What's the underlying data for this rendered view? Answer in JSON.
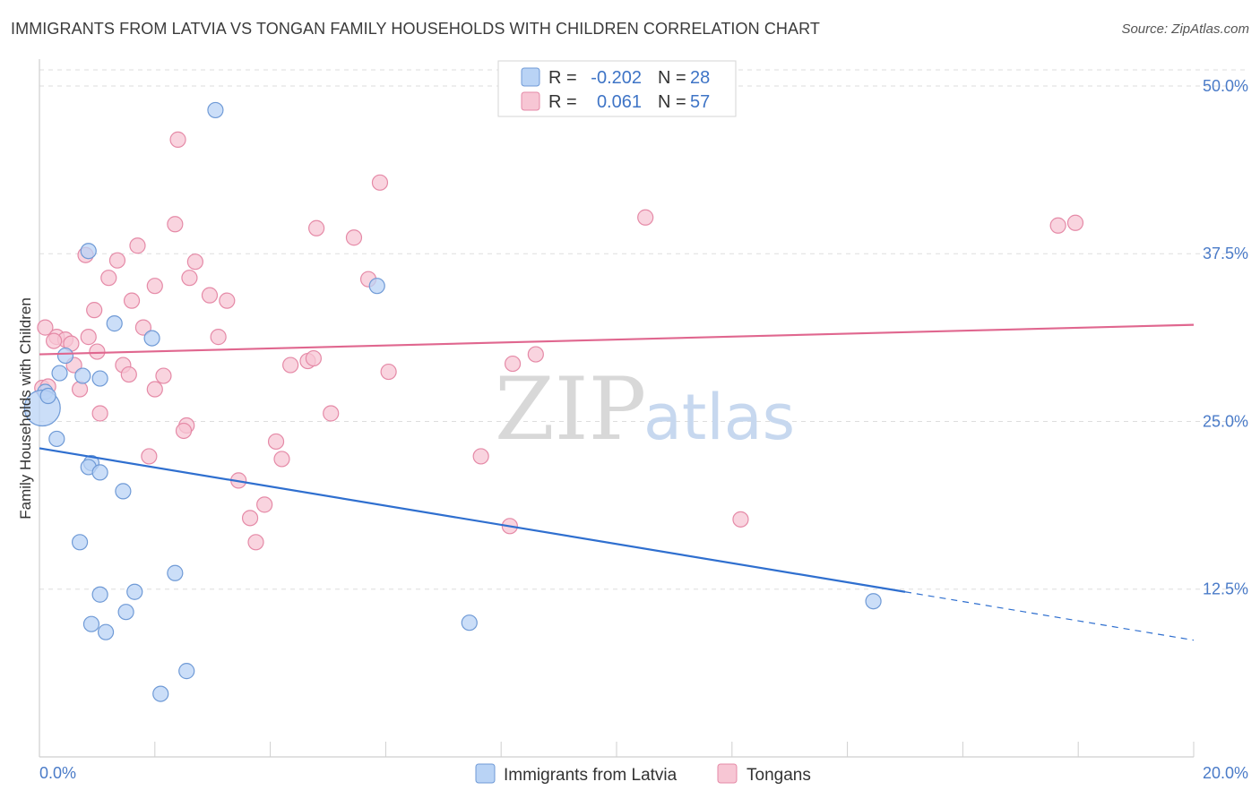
{
  "title": "IMMIGRANTS FROM LATVIA VS TONGAN FAMILY HOUSEHOLDS WITH CHILDREN CORRELATION CHART",
  "source": "Source: ZipAtlas.com",
  "colors": {
    "latvia_fill": "#b9d3f5",
    "latvia_stroke": "#6f9ad6",
    "latvia_line": "#2f6fcf",
    "tongan_fill": "#f7c6d4",
    "tongan_stroke": "#e58aa7",
    "tongan_line": "#e0678f",
    "tick_text": "#4a7bc8",
    "grid": "#dddddd"
  },
  "legend": {
    "r_label": "R =",
    "n_label": "N =",
    "rows": [
      {
        "r": "-0.202",
        "n": "28"
      },
      {
        "r": "0.061",
        "n": "57"
      }
    ]
  },
  "watermark": {
    "zip": "ZIP",
    "atlas": "atlas"
  },
  "chart_data": {
    "type": "scatter",
    "xlabel": "",
    "ylabel": "Family Households with Children",
    "xlim": [
      0,
      20
    ],
    "ylim": [
      0,
      52
    ],
    "x_tick_labels": [
      "0.0%",
      "20.0%"
    ],
    "y_ticks": [
      12.5,
      25.0,
      37.5,
      50.0
    ],
    "y_tick_labels": [
      "12.5%",
      "25.0%",
      "37.5%",
      "50.0%"
    ],
    "grid": true,
    "legend_position": "top-center",
    "series": [
      {
        "name": "Immigrants from Latvia",
        "trend": {
          "x0": 0.0,
          "y0": 23.0,
          "x1": 15.0,
          "y1": 12.3,
          "x_dash_end": 20.0,
          "y_dash_end": 8.7
        },
        "points": [
          [
            3.05,
            48.2
          ],
          [
            0.85,
            37.7
          ],
          [
            5.85,
            35.1
          ],
          [
            1.3,
            32.3
          ],
          [
            1.95,
            31.2
          ],
          [
            0.45,
            29.9
          ],
          [
            0.35,
            28.6
          ],
          [
            0.75,
            28.4
          ],
          [
            1.05,
            28.2
          ],
          [
            0.1,
            27.2
          ],
          [
            0.05,
            26.0
          ],
          [
            0.3,
            23.7
          ],
          [
            0.9,
            21.9
          ],
          [
            0.85,
            21.6
          ],
          [
            1.05,
            21.2
          ],
          [
            1.45,
            19.8
          ],
          [
            0.7,
            16.0
          ],
          [
            2.35,
            13.7
          ],
          [
            1.65,
            12.3
          ],
          [
            1.05,
            12.1
          ],
          [
            1.5,
            10.8
          ],
          [
            0.9,
            9.9
          ],
          [
            1.15,
            9.3
          ],
          [
            7.45,
            10.0
          ],
          [
            14.45,
            11.6
          ],
          [
            2.55,
            6.4
          ],
          [
            2.1,
            4.7
          ],
          [
            0.15,
            26.9
          ]
        ]
      },
      {
        "name": "Tongans",
        "trend": {
          "x0": 0.0,
          "y0": 30.0,
          "x1": 20.0,
          "y1": 32.2
        },
        "points": [
          [
            2.4,
            46.0
          ],
          [
            5.9,
            42.8
          ],
          [
            10.5,
            40.2
          ],
          [
            2.35,
            39.7
          ],
          [
            4.8,
            39.4
          ],
          [
            5.45,
            38.7
          ],
          [
            17.65,
            39.6
          ],
          [
            17.95,
            39.8
          ],
          [
            1.7,
            38.1
          ],
          [
            0.8,
            37.4
          ],
          [
            1.35,
            37.0
          ],
          [
            2.7,
            36.9
          ],
          [
            1.2,
            35.7
          ],
          [
            2.6,
            35.7
          ],
          [
            5.7,
            35.6
          ],
          [
            2.0,
            35.1
          ],
          [
            2.95,
            34.4
          ],
          [
            3.25,
            34.0
          ],
          [
            1.6,
            34.0
          ],
          [
            0.95,
            33.3
          ],
          [
            0.1,
            32.0
          ],
          [
            0.3,
            31.3
          ],
          [
            0.45,
            31.1
          ],
          [
            0.85,
            31.3
          ],
          [
            3.1,
            31.3
          ],
          [
            1.8,
            32.0
          ],
          [
            0.25,
            31.0
          ],
          [
            0.55,
            30.8
          ],
          [
            1.0,
            30.2
          ],
          [
            8.6,
            30.0
          ],
          [
            0.6,
            29.2
          ],
          [
            1.45,
            29.2
          ],
          [
            4.35,
            29.2
          ],
          [
            4.65,
            29.5
          ],
          [
            4.75,
            29.7
          ],
          [
            8.2,
            29.3
          ],
          [
            6.05,
            28.7
          ],
          [
            1.55,
            28.5
          ],
          [
            2.15,
            28.4
          ],
          [
            0.7,
            27.4
          ],
          [
            2.0,
            27.4
          ],
          [
            0.05,
            27.5
          ],
          [
            5.05,
            25.6
          ],
          [
            1.05,
            25.6
          ],
          [
            2.55,
            24.7
          ],
          [
            2.5,
            24.3
          ],
          [
            4.1,
            23.5
          ],
          [
            4.2,
            22.2
          ],
          [
            1.9,
            22.4
          ],
          [
            7.65,
            22.4
          ],
          [
            3.45,
            20.6
          ],
          [
            3.9,
            18.8
          ],
          [
            3.65,
            17.8
          ],
          [
            12.15,
            17.7
          ],
          [
            8.15,
            17.2
          ],
          [
            3.75,
            16.0
          ],
          [
            0.15,
            27.6
          ]
        ]
      }
    ]
  }
}
